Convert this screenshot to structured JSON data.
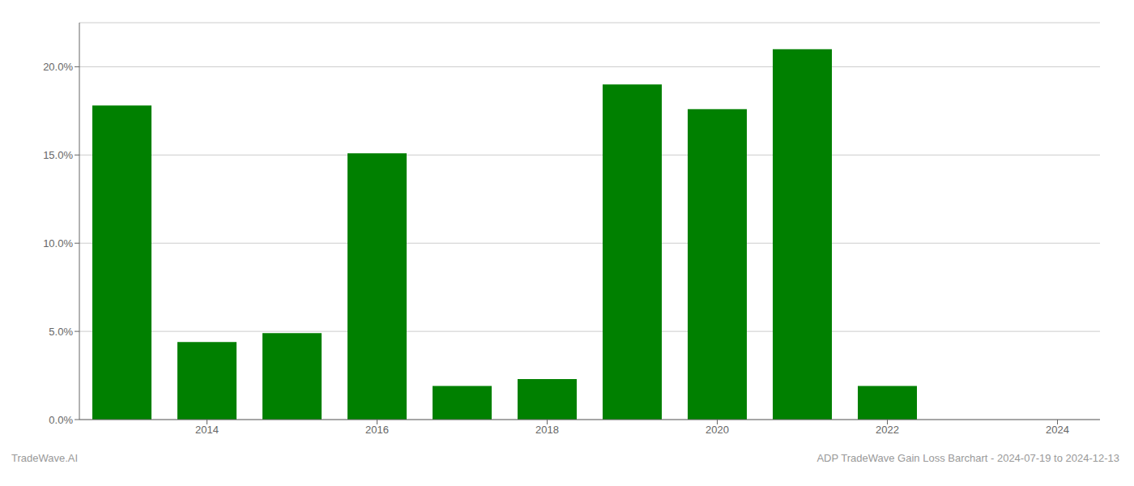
{
  "chart_data": {
    "type": "bar",
    "x": [
      2013,
      2014,
      2015,
      2016,
      2017,
      2018,
      2019,
      2020,
      2021,
      2022,
      2023
    ],
    "values": [
      0.178,
      0.044,
      0.049,
      0.151,
      0.019,
      0.023,
      0.19,
      0.176,
      0.21,
      0.019,
      0.0
    ],
    "color": "#008000",
    "xlim": [
      2012.5,
      2024.5
    ],
    "xticks": [
      2014,
      2016,
      2018,
      2020,
      2022,
      2024
    ],
    "ylim": [
      0,
      0.225
    ],
    "yticks": [
      {
        "value": 0.0,
        "label": "0.0%"
      },
      {
        "value": 0.05,
        "label": "5.0%"
      },
      {
        "value": 0.1,
        "label": "10.0%"
      },
      {
        "value": 0.15,
        "label": "15.0%"
      },
      {
        "value": 0.2,
        "label": "20.0%"
      }
    ],
    "grid": true,
    "annotations": [
      "TradeWave.AI",
      "ADP TradeWave Gain Loss Barchart - 2024-07-19 to 2024-12-13"
    ]
  }
}
